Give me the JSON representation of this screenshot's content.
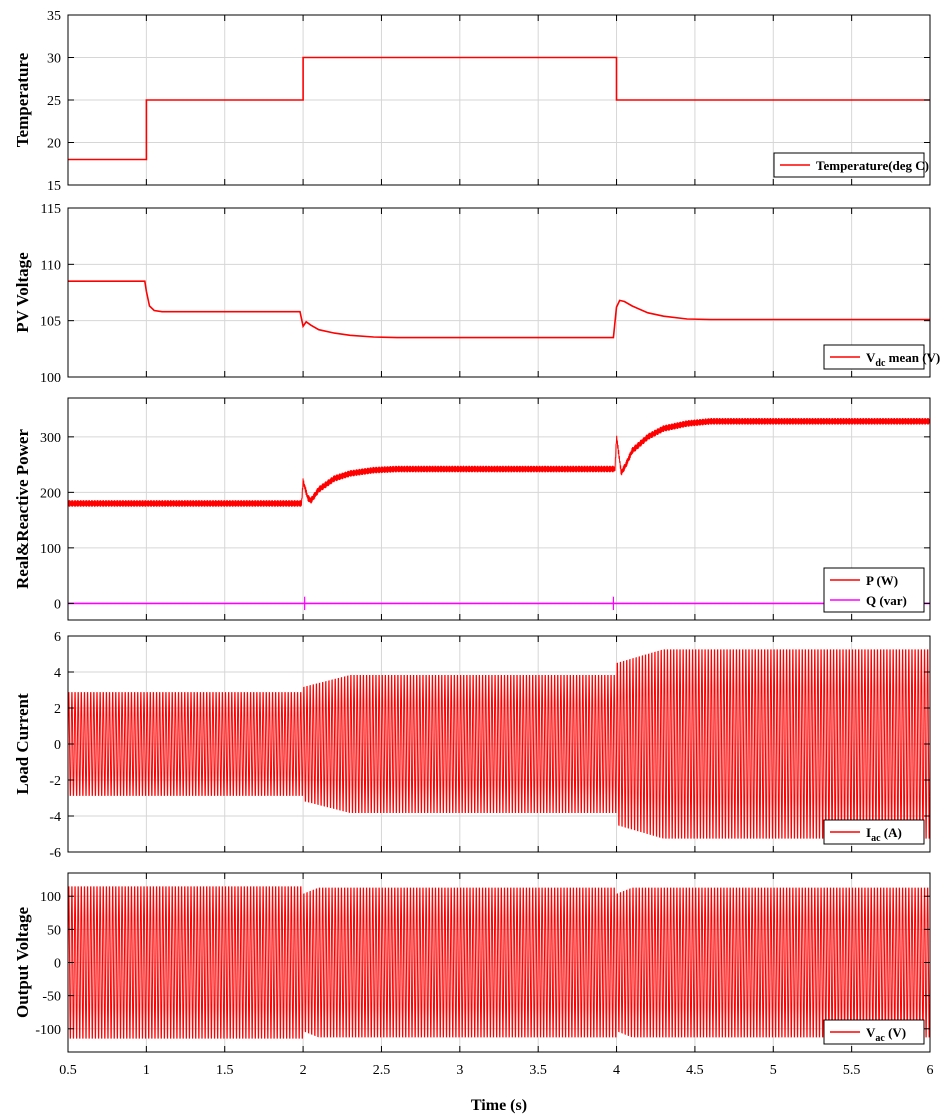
{
  "chart_data": [
    {
      "type": "line",
      "ylabel": "Temperature",
      "ylim": [
        15,
        35
      ],
      "yticks": [
        15,
        20,
        25,
        30,
        35
      ],
      "xlim": [
        0.5,
        6
      ],
      "grid": true,
      "legend_position": "bottom-right",
      "series": [
        {
          "name": "Temperature(deg C)",
          "color": "#ff0000",
          "style": "step",
          "x": [
            0.5,
            1,
            1,
            2,
            2,
            4,
            4,
            6
          ],
          "y": [
            18,
            18,
            25,
            25,
            30,
            30,
            25,
            25
          ]
        }
      ]
    },
    {
      "type": "line",
      "ylabel": "PV Voltage",
      "ylim": [
        100,
        115
      ],
      "yticks": [
        100,
        105,
        110,
        115
      ],
      "xlim": [
        0.5,
        6
      ],
      "grid": true,
      "legend_position": "bottom-right",
      "series": [
        {
          "name": "V",
          "name_sub": "dc",
          "name_suffix": " mean (V)",
          "color": "#ff0000",
          "style": "line",
          "x": [
            0.5,
            0.99,
            1.0,
            1.02,
            1.05,
            1.1,
            1.98,
            2.0,
            2.02,
            2.05,
            2.1,
            2.2,
            2.3,
            2.45,
            2.6,
            3.98,
            4.0,
            4.02,
            4.05,
            4.1,
            4.2,
            4.3,
            4.45,
            4.6,
            6.0
          ],
          "y": [
            108.5,
            108.5,
            107.6,
            106.3,
            105.9,
            105.8,
            105.8,
            104.5,
            104.9,
            104.6,
            104.2,
            103.9,
            103.7,
            103.55,
            103.5,
            103.5,
            106.2,
            106.8,
            106.7,
            106.3,
            105.7,
            105.4,
            105.15,
            105.1,
            105.1
          ]
        }
      ]
    },
    {
      "type": "line",
      "ylabel": "Real&Reactive Power",
      "ylim": [
        -30,
        370
      ],
      "yticks": [
        0,
        100,
        200,
        300
      ],
      "xlim": [
        0.5,
        6
      ],
      "grid": true,
      "legend_position": "bottom-right",
      "series": [
        {
          "name": "P (W)",
          "color": "#ff0000",
          "style": "noisy",
          "ripple": 6,
          "x": [
            0.5,
            1.99,
            2.0,
            2.03,
            2.05,
            2.1,
            2.2,
            2.3,
            2.45,
            2.6,
            3.99,
            4.0,
            4.03,
            4.06,
            4.1,
            4.2,
            4.3,
            4.45,
            4.6,
            6.0
          ],
          "y": [
            180,
            180,
            220,
            190,
            185,
            205,
            225,
            234,
            240,
            242,
            242,
            300,
            235,
            250,
            275,
            300,
            315,
            324,
            328,
            328
          ]
        },
        {
          "name": "Q (var)",
          "color": "#ff00ff",
          "style": "line",
          "x": [
            0.5,
            6.0
          ],
          "y": [
            0,
            0
          ]
        }
      ]
    },
    {
      "type": "line",
      "ylabel": "Load Current",
      "ylim": [
        -6,
        6
      ],
      "yticks": [
        -6,
        -4,
        -2,
        0,
        2,
        4,
        6
      ],
      "xlim": [
        0.5,
        6
      ],
      "grid": true,
      "legend_position": "bottom-right",
      "series": [
        {
          "name": "I",
          "name_sub": "ac",
          "name_suffix": " (A)",
          "color": "#ff0000",
          "style": "sine",
          "frequency_hz": 50,
          "amp_x": [
            0.5,
            2.0,
            2.0,
            2.3,
            4.0,
            4.0,
            4.3,
            6.0
          ],
          "amp_y": [
            3.0,
            3.0,
            3.3,
            4.0,
            4.0,
            4.7,
            5.5,
            5.5
          ]
        }
      ]
    },
    {
      "type": "line",
      "ylabel": "Output Voltage",
      "xlabel": "Time (s)",
      "ylim": [
        -135,
        135
      ],
      "yticks": [
        -100,
        -50,
        0,
        50,
        100
      ],
      "xlim": [
        0.5,
        6
      ],
      "xticks": [
        0.5,
        1,
        1.5,
        2,
        2.5,
        3,
        3.5,
        4,
        4.5,
        5,
        5.5,
        6
      ],
      "grid": true,
      "legend_position": "bottom-right",
      "series": [
        {
          "name": "V",
          "name_sub": "ac",
          "name_suffix": " (V)",
          "color": "#ff0000",
          "style": "sine",
          "frequency_hz": 50,
          "amp_x": [
            0.5,
            2.0,
            2.0,
            2.1,
            4.0,
            4.0,
            4.1,
            6.0
          ],
          "amp_y": [
            120,
            120,
            108,
            118,
            118,
            108,
            118,
            118
          ]
        }
      ]
    }
  ]
}
